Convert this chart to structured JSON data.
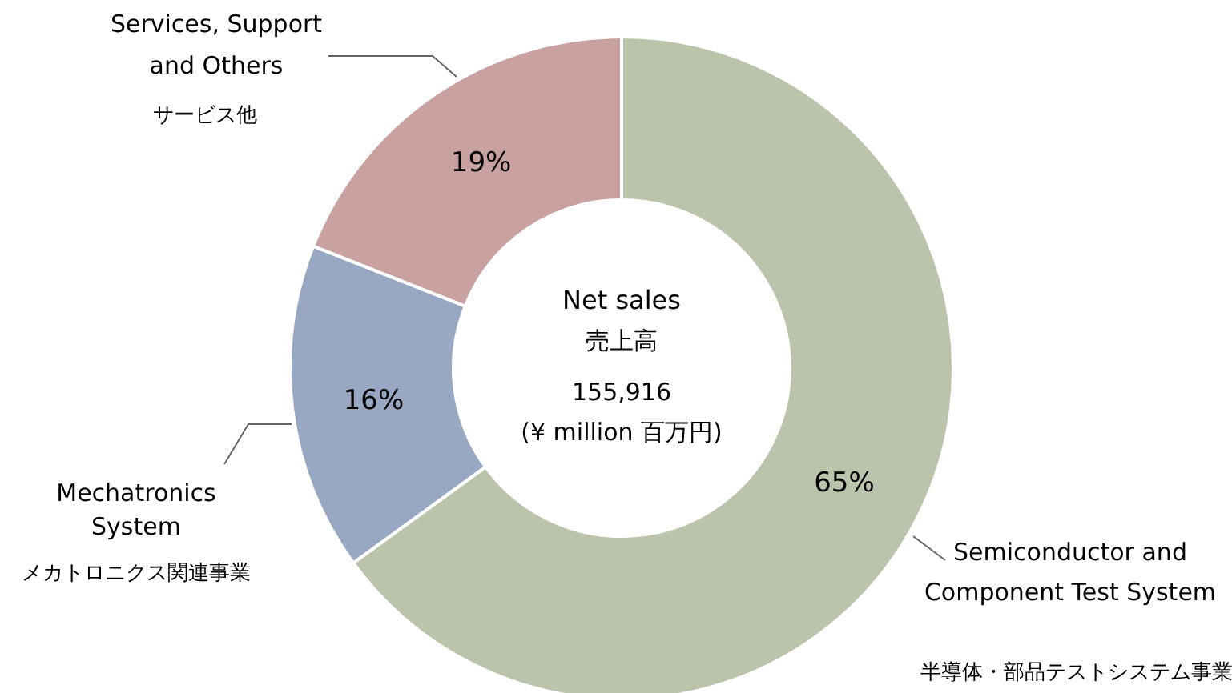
{
  "chart_data": {
    "type": "donut",
    "title": "Net sales",
    "subtitle": "売上高",
    "categories": [
      "Semiconductor and\nComponent Test System",
      "Mechatronics\nSystem",
      "Services, Support\nand Others"
    ],
    "values": [
      65,
      16,
      19
    ],
    "colors": [
      "#b9c4aa",
      "#98a8c2",
      "#c9a1a0"
    ],
    "value_labels": [
      "65%",
      "16%",
      "19%"
    ],
    "annotations": [
      "155,916",
      "(¥ million 百万円)",
      "半導体・部品テストシステム事業",
      "メカトロニクス関連事業",
      "サービス他"
    ]
  }
}
